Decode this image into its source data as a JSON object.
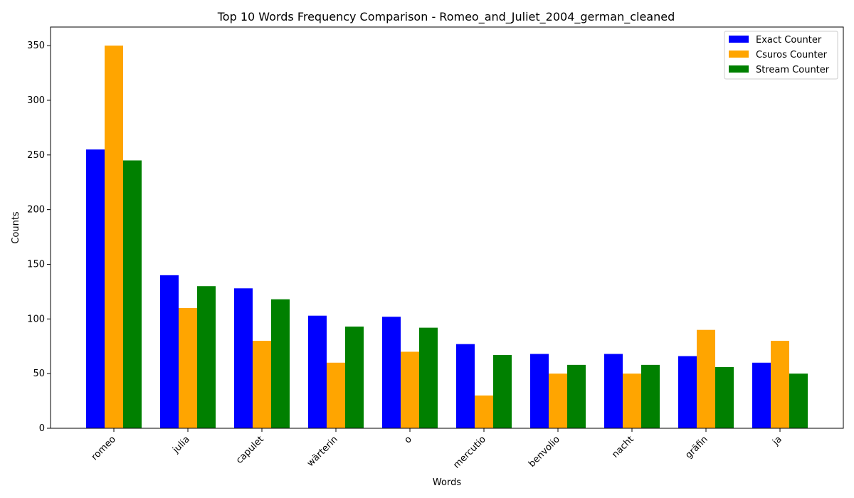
{
  "chart_data": {
    "type": "bar",
    "title": "Top 10 Words Frequency Comparison - Romeo_and_Juliet_2004_german_cleaned",
    "xlabel": "Words",
    "ylabel": "Counts",
    "categories": [
      "romeo",
      "julia",
      "capulet",
      "wärterin",
      "o",
      "mercutio",
      "benvolio",
      "nacht",
      "gräfin",
      "ja"
    ],
    "series": [
      {
        "name": "Exact Counter",
        "color": "#0000ff",
        "values": [
          255,
          140,
          128,
          103,
          102,
          77,
          68,
          68,
          66,
          60
        ]
      },
      {
        "name": "Csuros Counter",
        "color": "#ffa500",
        "values": [
          350,
          110,
          80,
          60,
          70,
          30,
          50,
          50,
          90,
          80
        ]
      },
      {
        "name": "Stream Counter",
        "color": "#008000",
        "values": [
          245,
          130,
          118,
          93,
          92,
          67,
          58,
          58,
          56,
          50
        ]
      }
    ],
    "ylim": [
      0,
      367
    ],
    "yticks": [
      0,
      50,
      100,
      150,
      200,
      250,
      300,
      350
    ],
    "grid": false,
    "legend_position": "top-right"
  }
}
